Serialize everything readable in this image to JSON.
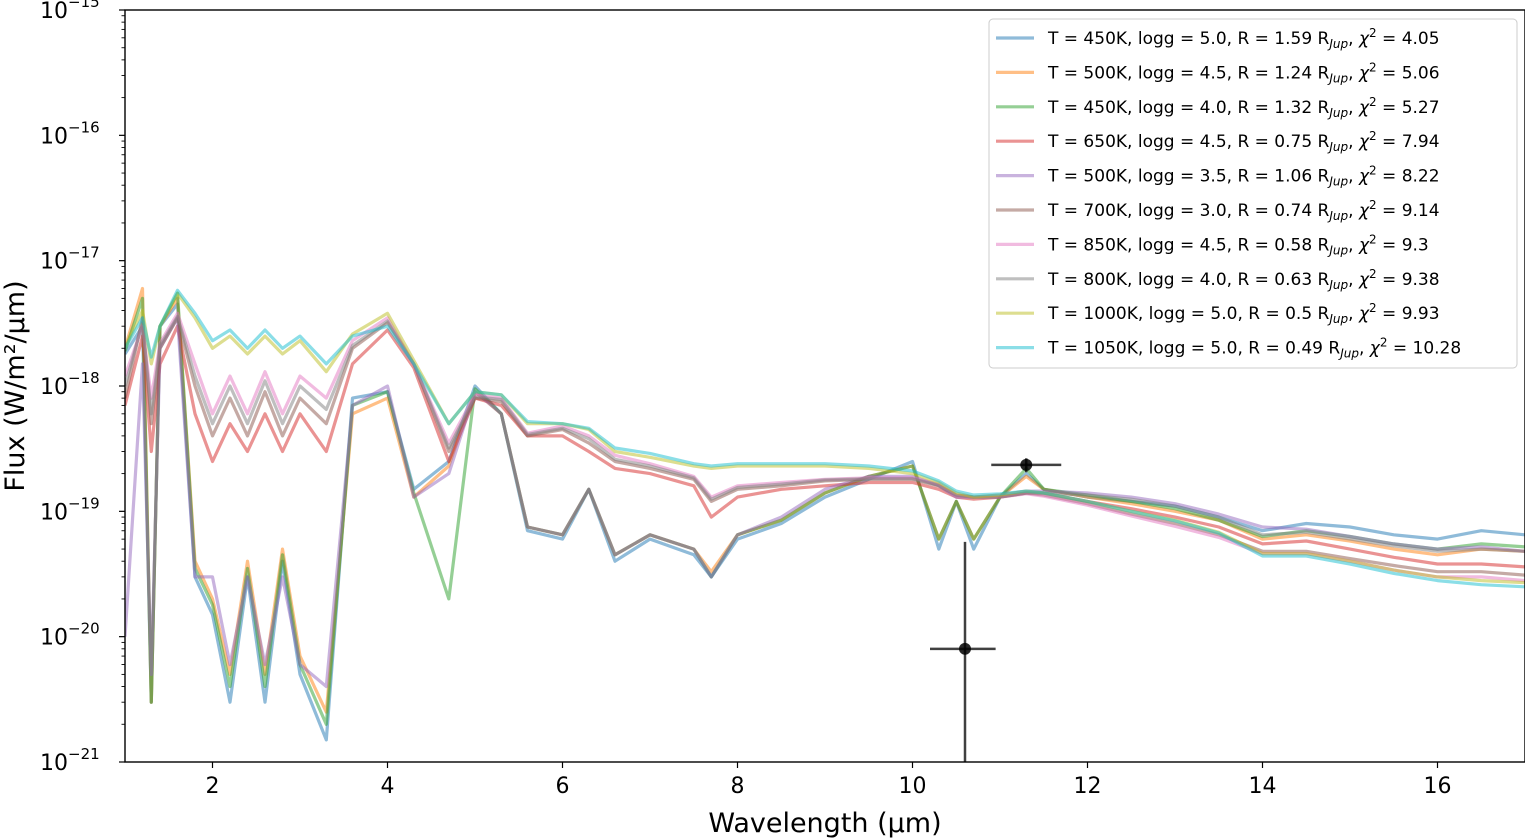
{
  "chart_data": {
    "type": "line",
    "xlabel": "Wavelength (μm)",
    "ylabel": "Flux (W/m²/μm)",
    "xlim": [
      1.0,
      17.0
    ],
    "ylim": [
      1e-21,
      1e-15
    ],
    "yscale": "log",
    "x_ticks": [
      2,
      4,
      6,
      8,
      10,
      12,
      14,
      16
    ],
    "x_tick_labels": [
      "2",
      "4",
      "6",
      "8",
      "10",
      "12",
      "14",
      "16"
    ],
    "y_ticks": [
      {
        "base": "10",
        "exp": "−21",
        "value": 1e-21
      },
      {
        "base": "10",
        "exp": "−20",
        "value": 1e-20
      },
      {
        "base": "10",
        "exp": "−19",
        "value": 1e-19
      },
      {
        "base": "10",
        "exp": "−18",
        "value": 1e-18
      },
      {
        "base": "10",
        "exp": "−17",
        "value": 1e-17
      },
      {
        "base": "10",
        "exp": "−16",
        "value": 1e-16
      },
      {
        "base": "10",
        "exp": "−15",
        "value": 1e-15
      }
    ],
    "legend_position": "top-right",
    "x": [
      1.0,
      1.2,
      1.3,
      1.4,
      1.6,
      1.8,
      2.0,
      2.2,
      2.4,
      2.6,
      2.8,
      3.0,
      3.3,
      3.6,
      4.0,
      4.3,
      4.7,
      5.0,
      5.3,
      5.6,
      6.0,
      6.3,
      6.6,
      7.0,
      7.5,
      7.7,
      8.0,
      8.5,
      9.0,
      9.5,
      10.0,
      10.3,
      10.5,
      10.7,
      11.0,
      11.3,
      11.5,
      12.0,
      12.5,
      13.0,
      13.5,
      14.0,
      14.5,
      15.0,
      15.5,
      16.0,
      16.5,
      17.0
    ],
    "series": [
      {
        "legend": "T = 450K, logg = 5.0, R = 1.59 R",
        "sub": "Jup",
        "chi": "4.05",
        "color": "#1f77b4",
        "values": [
          1.8e-18,
          3e-18,
          3e-21,
          3e-18,
          4.5e-18,
          3e-20,
          1.5e-20,
          3e-21,
          3e-20,
          3e-21,
          4e-20,
          5e-21,
          1.5e-21,
          8e-19,
          9e-19,
          1.5e-19,
          2.5e-19,
          1e-18,
          6e-19,
          7e-20,
          6e-20,
          1.5e-19,
          4e-20,
          6e-20,
          4.5e-20,
          3e-20,
          6e-20,
          8e-20,
          1.3e-19,
          1.8e-19,
          2.5e-19,
          5e-20,
          1.2e-19,
          5e-20,
          1.3e-19,
          2e-19,
          1.5e-19,
          1.3e-19,
          1.2e-19,
          1.1e-19,
          9e-20,
          7e-20,
          8e-20,
          7.5e-20,
          6.5e-20,
          6e-20,
          7e-20,
          6.5e-20
        ]
      },
      {
        "legend": "T = 500K, logg = 4.5, R = 1.24 R",
        "sub": "Jup",
        "chi": "5.06",
        "color": "#ff7f0e",
        "values": [
          2e-18,
          6e-18,
          3e-21,
          3e-18,
          5e-18,
          4e-20,
          2e-20,
          5e-21,
          4e-20,
          5e-21,
          5e-20,
          7e-21,
          2.5e-21,
          6e-19,
          8e-19,
          1.3e-19,
          2.3e-19,
          9e-19,
          6e-19,
          7.5e-20,
          6.5e-20,
          1.5e-19,
          4.5e-20,
          6.5e-20,
          5e-20,
          3.3e-20,
          6.5e-20,
          8.5e-20,
          1.4e-19,
          1.9e-19,
          2.3e-19,
          6e-20,
          1.2e-19,
          6e-20,
          1.3e-19,
          1.9e-19,
          1.5e-19,
          1.3e-19,
          1.15e-19,
          1e-19,
          8.5e-20,
          6e-20,
          6.5e-20,
          5.8e-20,
          5e-20,
          4.5e-20,
          5e-20,
          4.8e-20
        ]
      },
      {
        "legend": "T = 450K, logg = 4.0, R = 1.32 R",
        "sub": "Jup",
        "chi": "5.27",
        "color": "#2ca02c",
        "values": [
          1.9e-18,
          5e-18,
          3e-21,
          3e-18,
          5.5e-18,
          3.5e-20,
          1.8e-20,
          4e-21,
          3.5e-20,
          4e-21,
          4.5e-20,
          6e-21,
          2e-21,
          7e-19,
          9e-19,
          1.4e-19,
          2e-20,
          9.5e-19,
          6e-19,
          7.5e-20,
          6.5e-20,
          1.5e-19,
          4.5e-20,
          6.5e-20,
          5e-20,
          3e-20,
          6.5e-20,
          8.5e-20,
          1.4e-19,
          1.9e-19,
          2.3e-19,
          6e-20,
          1.2e-19,
          6e-20,
          1.3e-19,
          2.2e-19,
          1.5e-19,
          1.35e-19,
          1.2e-19,
          1.05e-19,
          8.5e-20,
          6.3e-20,
          7e-20,
          6.3e-20,
          5.5e-20,
          5e-20,
          5.5e-20,
          5.2e-20
        ]
      },
      {
        "legend": "T = 650K, logg = 4.5, R = 0.75 R",
        "sub": "Jup",
        "chi": "7.94",
        "color": "#d62728",
        "values": [
          7e-19,
          2.5e-18,
          3e-19,
          1.5e-18,
          3e-18,
          6e-19,
          2.5e-19,
          5e-19,
          3e-19,
          6e-19,
          3e-19,
          6e-19,
          3e-19,
          1.5e-18,
          2.8e-18,
          1.4e-18,
          2.5e-19,
          8e-19,
          7e-19,
          4e-19,
          4e-19,
          3e-19,
          2.2e-19,
          2e-19,
          1.6e-19,
          9e-20,
          1.3e-19,
          1.5e-19,
          1.6e-19,
          1.7e-19,
          1.7e-19,
          1.5e-19,
          1.3e-19,
          1.25e-19,
          1.3e-19,
          1.4e-19,
          1.4e-19,
          1.2e-19,
          1.05e-19,
          9e-20,
          7.5e-20,
          5.5e-20,
          5.8e-20,
          5e-20,
          4.3e-20,
          3.8e-20,
          3.8e-20,
          3.6e-20
        ]
      },
      {
        "legend": "T = 500K, logg = 3.5, R = 1.06 R",
        "sub": "Jup",
        "chi": "8.22",
        "color": "#9467bd",
        "values": [
          1e-20,
          1.5e-18,
          5e-21,
          2e-18,
          3.5e-18,
          3e-20,
          3e-20,
          6e-21,
          3e-20,
          6e-21,
          3e-20,
          6e-21,
          4e-21,
          7e-19,
          1e-18,
          1.3e-19,
          2e-19,
          9e-19,
          6e-19,
          7.5e-20,
          6.5e-20,
          1.5e-19,
          4.5e-20,
          6.5e-20,
          5e-20,
          3e-20,
          6.5e-20,
          9e-20,
          1.5e-19,
          1.9e-19,
          1.9e-19,
          1.6e-19,
          1.3e-19,
          1.3e-19,
          1.35e-19,
          1.45e-19,
          1.45e-19,
          1.4e-19,
          1.3e-19,
          1.15e-19,
          9.5e-20,
          7.5e-20,
          7.2e-20,
          6.3e-20,
          5.5e-20,
          5e-20,
          5.2e-20,
          4.8e-20
        ]
      },
      {
        "legend": "T = 700K, logg = 3.0, R = 0.74 R",
        "sub": "Jup",
        "chi": "9.14",
        "color": "#8c564b",
        "values": [
          8e-19,
          3.5e-18,
          5e-19,
          2e-18,
          3.5e-18,
          1e-18,
          4e-19,
          8e-19,
          4e-19,
          9e-19,
          4e-19,
          8e-19,
          5e-19,
          2e-18,
          3.2e-18,
          1.5e-18,
          3e-19,
          8e-19,
          7.5e-19,
          4e-19,
          4.5e-19,
          3.5e-19,
          2.5e-19,
          2.2e-19,
          1.8e-19,
          1.2e-19,
          1.5e-19,
          1.6e-19,
          1.75e-19,
          1.8e-19,
          1.8e-19,
          1.6e-19,
          1.35e-19,
          1.3e-19,
          1.3e-19,
          1.4e-19,
          1.35e-19,
          1.15e-19,
          9.5e-20,
          8e-20,
          6.5e-20,
          4.8e-20,
          4.8e-20,
          4.2e-20,
          3.7e-20,
          3.3e-20,
          3.3e-20,
          3.1e-20
        ]
      },
      {
        "legend": "T = 850K, logg = 4.5, R = 0.58 R",
        "sub": "Jup",
        "chi": "9.3",
        "color": "#e377c2",
        "values": [
          1.2e-18,
          3e-18,
          8e-19,
          2.2e-18,
          3.8e-18,
          1.5e-18,
          6e-19,
          1.2e-18,
          6e-19,
          1.3e-18,
          6e-19,
          1.2e-18,
          8e-19,
          2.3e-18,
          3.5e-18,
          1.5e-18,
          3.5e-19,
          8.5e-19,
          8e-19,
          4.2e-19,
          4.8e-19,
          4e-19,
          2.8e-19,
          2.4e-19,
          1.9e-19,
          1.3e-19,
          1.6e-19,
          1.7e-19,
          1.8e-19,
          1.85e-19,
          1.85e-19,
          1.65e-19,
          1.35e-19,
          1.3e-19,
          1.3e-19,
          1.38e-19,
          1.32e-19,
          1.12e-19,
          9.2e-20,
          7.6e-20,
          6.2e-20,
          4.6e-20,
          4.6e-20,
          4e-20,
          3.4e-20,
          3e-20,
          3e-20,
          2.8e-20
        ]
      },
      {
        "legend": "T = 800K, logg = 4.0, R = 0.63 R",
        "sub": "Jup",
        "chi": "9.38",
        "color": "#7f7f7f",
        "values": [
          1e-18,
          3.2e-18,
          6e-19,
          2.1e-18,
          3.6e-18,
          1.2e-18,
          5e-19,
          1e-18,
          5e-19,
          1.1e-18,
          5e-19,
          1e-18,
          6.5e-19,
          2.1e-18,
          3.3e-18,
          1.5e-18,
          3.2e-19,
          8.2e-19,
          7.8e-19,
          4.1e-19,
          4.6e-19,
          3.8e-19,
          2.6e-19,
          2.3e-19,
          1.85e-19,
          1.25e-19,
          1.55e-19,
          1.65e-19,
          1.78e-19,
          1.82e-19,
          1.82e-19,
          1.62e-19,
          1.35e-19,
          1.3e-19,
          1.3e-19,
          1.4e-19,
          1.4e-19,
          1.35e-19,
          1.25e-19,
          1.1e-19,
          9e-20,
          6.5e-20,
          6.8e-20,
          6e-20,
          5.3e-20,
          4.8e-20,
          5e-20,
          4.8e-20
        ]
      },
      {
        "legend": "T = 1000K, logg = 5.0, R = 0.5 R",
        "sub": "Jup",
        "chi": "9.93",
        "color": "#bcbd22",
        "values": [
          2e-18,
          4e-18,
          1.5e-18,
          3e-18,
          5.5e-18,
          3.5e-18,
          2e-18,
          2.5e-18,
          1.8e-18,
          2.5e-18,
          1.8e-18,
          2.3e-18,
          1.3e-18,
          2.6e-18,
          3.8e-18,
          1.6e-18,
          5e-19,
          9e-19,
          8.5e-19,
          5e-19,
          5e-19,
          4.5e-19,
          3e-19,
          2.7e-19,
          2.3e-19,
          2.2e-19,
          2.3e-19,
          2.3e-19,
          2.3e-19,
          2.2e-19,
          2e-19,
          1.7e-19,
          1.4e-19,
          1.3e-19,
          1.35e-19,
          1.45e-19,
          1.4e-19,
          1.2e-19,
          1e-19,
          8.5e-20,
          6.8e-20,
          4.6e-20,
          4.6e-20,
          4e-20,
          3.4e-20,
          3e-20,
          2.8e-20,
          2.7e-20
        ]
      },
      {
        "legend": "T = 1050K, logg = 5.0, R = 0.49 R",
        "sub": "Jup",
        "chi": "10.28",
        "color": "#17becf",
        "values": [
          2e-18,
          3.5e-18,
          1.7e-18,
          3e-18,
          5.8e-18,
          3.8e-18,
          2.3e-18,
          2.8e-18,
          2e-18,
          2.8e-18,
          2e-18,
          2.5e-18,
          1.5e-18,
          2.5e-18,
          3e-18,
          1.5e-18,
          5e-19,
          9e-19,
          8.5e-19,
          5.2e-19,
          5e-19,
          4.6e-19,
          3.2e-19,
          2.9e-19,
          2.4e-19,
          2.3e-19,
          2.4e-19,
          2.4e-19,
          2.4e-19,
          2.3e-19,
          2.1e-19,
          1.75e-19,
          1.45e-19,
          1.35e-19,
          1.38e-19,
          1.45e-19,
          1.4e-19,
          1.2e-19,
          1e-19,
          8.4e-20,
          6.7e-20,
          4.4e-20,
          4.4e-20,
          3.8e-20,
          3.2e-20,
          2.8e-20,
          2.6e-20,
          2.5e-20
        ]
      }
    ],
    "errorbar_points": [
      {
        "x": 10.6,
        "y": 8e-21,
        "x_low": 10.2,
        "x_high": 10.95,
        "y_low": 1e-21,
        "y_high": 5.7e-20
      },
      {
        "x": 11.3,
        "y": 2.35e-19,
        "x_low": 10.9,
        "x_high": 11.7,
        "y_low": 2.05e-19,
        "y_high": 2.65e-19
      }
    ]
  }
}
